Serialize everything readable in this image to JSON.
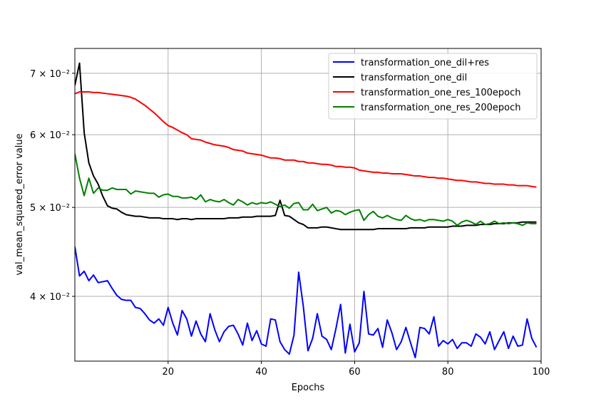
{
  "chart_data": {
    "type": "line",
    "xlabel": "Epochs",
    "ylabel": "val_mean_squared_error value",
    "yscale": "log",
    "xlim": [
      0,
      100
    ],
    "ylim": [
      0.034,
      0.0745
    ],
    "grid": true,
    "legend_position": "top-right",
    "x_ticks": [
      20,
      40,
      60,
      80,
      100
    ],
    "y_ticks": [
      {
        "value": 0.04,
        "label": "4 × 10⁻²"
      },
      {
        "value": 0.05,
        "label": "5 × 10⁻²"
      },
      {
        "value": 0.06,
        "label": "6 × 10⁻²"
      },
      {
        "value": 0.07,
        "label": "7 × 10⁻²"
      }
    ],
    "series": [
      {
        "name": "transformation_one_dil+res",
        "color": "#0000ff",
        "x": [
          0,
          1,
          2,
          3,
          4,
          5,
          6,
          7,
          8,
          9,
          10,
          11,
          12,
          13,
          14,
          15,
          16,
          17,
          18,
          19,
          20,
          21,
          22,
          23,
          24,
          25,
          26,
          27,
          28,
          29,
          30,
          31,
          32,
          33,
          34,
          35,
          36,
          37,
          38,
          39,
          40,
          41,
          42,
          43,
          44,
          45,
          46,
          47,
          48,
          49,
          50,
          51,
          52,
          53,
          54,
          55,
          56,
          57,
          58,
          59,
          60,
          61,
          62,
          63,
          64,
          65,
          66,
          67,
          68,
          69,
          70,
          71,
          72,
          73,
          74,
          75,
          76,
          77,
          78,
          79,
          80,
          81,
          82,
          83,
          84,
          85,
          86,
          87,
          88,
          89,
          90,
          91,
          92,
          93,
          94,
          95,
          96,
          97,
          98,
          99
        ],
        "values": [
          0.0453,
          0.0421,
          0.0426,
          0.0416,
          0.0422,
          0.0414,
          0.0415,
          0.0416,
          0.0408,
          0.0401,
          0.0397,
          0.0396,
          0.0396,
          0.0389,
          0.0388,
          0.0383,
          0.0377,
          0.0374,
          0.0378,
          0.0372,
          0.0389,
          0.0374,
          0.0363,
          0.0386,
          0.0378,
          0.0362,
          0.0376,
          0.0364,
          0.0357,
          0.0383,
          0.0368,
          0.0357,
          0.0366,
          0.0371,
          0.0372,
          0.0364,
          0.0354,
          0.0374,
          0.0358,
          0.0367,
          0.0355,
          0.0353,
          0.0378,
          0.0377,
          0.0357,
          0.035,
          0.0346,
          0.0363,
          0.0425,
          0.039,
          0.0349,
          0.036,
          0.0383,
          0.0362,
          0.0359,
          0.035,
          0.0369,
          0.0392,
          0.0347,
          0.0373,
          0.0348,
          0.0356,
          0.0405,
          0.0364,
          0.0363,
          0.0369,
          0.0352,
          0.0377,
          0.0365,
          0.035,
          0.0357,
          0.037,
          0.0356,
          0.0343,
          0.037,
          0.0369,
          0.0364,
          0.038,
          0.0353,
          0.0358,
          0.0355,
          0.0359,
          0.0351,
          0.0356,
          0.0356,
          0.0353,
          0.0364,
          0.0361,
          0.0355,
          0.0366,
          0.035,
          0.0358,
          0.0366,
          0.0351,
          0.0362,
          0.0353,
          0.0354,
          0.0378,
          0.036,
          0.0352
        ]
      },
      {
        "name": "transformation_one_dil",
        "color": "#000000",
        "x": [
          0,
          1,
          2,
          3,
          4,
          5,
          6,
          7,
          8,
          9,
          10,
          11,
          12,
          13,
          14,
          15,
          16,
          17,
          18,
          19,
          20,
          21,
          22,
          23,
          24,
          25,
          26,
          27,
          28,
          29,
          30,
          31,
          32,
          33,
          34,
          35,
          36,
          37,
          38,
          39,
          40,
          41,
          42,
          43,
          44,
          45,
          46,
          47,
          48,
          49,
          50,
          51,
          52,
          53,
          54,
          55,
          56,
          57,
          58,
          59,
          60,
          61,
          62,
          63,
          64,
          65,
          66,
          67,
          68,
          69,
          70,
          71,
          72,
          73,
          74,
          75,
          76,
          77,
          78,
          79,
          80,
          81,
          82,
          83,
          84,
          85,
          86,
          87,
          88,
          89,
          90,
          91,
          92,
          93,
          94,
          95,
          96,
          97,
          98,
          99
        ],
        "values": [
          0.0679,
          0.0718,
          0.0603,
          0.0559,
          0.0541,
          0.053,
          0.0514,
          0.0502,
          0.0499,
          0.0498,
          0.0494,
          0.0491,
          0.049,
          0.0489,
          0.0489,
          0.0488,
          0.0487,
          0.0487,
          0.0487,
          0.0486,
          0.0486,
          0.0486,
          0.0485,
          0.0486,
          0.0486,
          0.0485,
          0.0486,
          0.0486,
          0.0486,
          0.0486,
          0.0486,
          0.0486,
          0.0486,
          0.0487,
          0.0487,
          0.0487,
          0.0488,
          0.0488,
          0.0488,
          0.0489,
          0.0489,
          0.0489,
          0.0489,
          0.049,
          0.0509,
          0.049,
          0.0489,
          0.0485,
          0.0481,
          0.0479,
          0.0475,
          0.0475,
          0.0475,
          0.0476,
          0.0476,
          0.0475,
          0.0474,
          0.0473,
          0.0473,
          0.0473,
          0.0473,
          0.0473,
          0.0473,
          0.0473,
          0.0473,
          0.0474,
          0.0474,
          0.0474,
          0.0474,
          0.0474,
          0.0474,
          0.0474,
          0.0475,
          0.0475,
          0.0475,
          0.0475,
          0.0476,
          0.0476,
          0.0476,
          0.0476,
          0.0476,
          0.0477,
          0.0477,
          0.0477,
          0.0478,
          0.0478,
          0.0478,
          0.0479,
          0.0479,
          0.0479,
          0.048,
          0.048,
          0.048,
          0.0481,
          0.0481,
          0.0481,
          0.0482,
          0.0482,
          0.0482,
          0.0482
        ]
      },
      {
        "name": "transformation_one_res_100epoch",
        "color": "#ff0000",
        "x": [
          0,
          1,
          2,
          3,
          4,
          5,
          6,
          7,
          8,
          9,
          10,
          11,
          12,
          13,
          14,
          15,
          16,
          17,
          18,
          19,
          20,
          21,
          22,
          23,
          24,
          25,
          26,
          27,
          28,
          29,
          30,
          31,
          32,
          33,
          34,
          35,
          36,
          37,
          38,
          39,
          40,
          41,
          42,
          43,
          44,
          45,
          46,
          47,
          48,
          49,
          50,
          51,
          52,
          53,
          54,
          55,
          56,
          57,
          58,
          59,
          60,
          61,
          62,
          63,
          64,
          65,
          66,
          67,
          68,
          69,
          70,
          71,
          72,
          73,
          74,
          75,
          76,
          77,
          78,
          79,
          80,
          81,
          82,
          83,
          84,
          85,
          86,
          87,
          88,
          89,
          90,
          91,
          92,
          93,
          94,
          95,
          96,
          97,
          98,
          99
        ],
        "values": [
          0.0665,
          0.0668,
          0.0668,
          0.0668,
          0.0667,
          0.0667,
          0.0666,
          0.0665,
          0.0664,
          0.0663,
          0.0662,
          0.0661,
          0.0659,
          0.0656,
          0.0651,
          0.0646,
          0.064,
          0.0634,
          0.0627,
          0.062,
          0.0614,
          0.0611,
          0.0607,
          0.0603,
          0.06,
          0.0594,
          0.0593,
          0.0592,
          0.0589,
          0.0587,
          0.0585,
          0.0584,
          0.0583,
          0.0581,
          0.0578,
          0.0577,
          0.0576,
          0.0573,
          0.0572,
          0.0571,
          0.057,
          0.0568,
          0.0566,
          0.0566,
          0.0565,
          0.0563,
          0.0563,
          0.0563,
          0.0561,
          0.0561,
          0.0559,
          0.0559,
          0.0558,
          0.0557,
          0.0557,
          0.0556,
          0.0554,
          0.0554,
          0.0553,
          0.0553,
          0.0552,
          0.0549,
          0.0548,
          0.0547,
          0.0546,
          0.0546,
          0.0545,
          0.0545,
          0.0544,
          0.0544,
          0.0544,
          0.0543,
          0.0542,
          0.0541,
          0.0541,
          0.054,
          0.0539,
          0.0539,
          0.0538,
          0.0538,
          0.0537,
          0.0536,
          0.0535,
          0.0535,
          0.0534,
          0.0533,
          0.0533,
          0.0532,
          0.0531,
          0.0531,
          0.053,
          0.053,
          0.053,
          0.0529,
          0.0529,
          0.0528,
          0.0528,
          0.0528,
          0.0527,
          0.0526
        ]
      },
      {
        "name": "transformation_one_res_200epoch",
        "color": "#008000",
        "x": [
          0,
          1,
          2,
          3,
          4,
          5,
          6,
          7,
          8,
          9,
          10,
          11,
          12,
          13,
          14,
          15,
          16,
          17,
          18,
          19,
          20,
          21,
          22,
          23,
          24,
          25,
          26,
          27,
          28,
          29,
          30,
          31,
          32,
          33,
          34,
          35,
          36,
          37,
          38,
          39,
          40,
          41,
          42,
          43,
          44,
          45,
          46,
          47,
          48,
          49,
          50,
          51,
          52,
          53,
          54,
          55,
          56,
          57,
          58,
          59,
          60,
          61,
          62,
          63,
          64,
          65,
          66,
          67,
          68,
          69,
          70,
          71,
          72,
          73,
          74,
          75,
          76,
          77,
          78,
          79,
          80,
          81,
          82,
          83,
          84,
          85,
          86,
          87,
          88,
          89,
          90,
          91,
          92,
          93,
          94,
          95,
          96,
          97,
          98,
          99
        ],
        "values": [
          0.0572,
          0.0538,
          0.0515,
          0.0538,
          0.0518,
          0.0525,
          0.0522,
          0.0522,
          0.0525,
          0.0523,
          0.0523,
          0.0523,
          0.0517,
          0.0521,
          0.052,
          0.0519,
          0.0518,
          0.0518,
          0.0513,
          0.0516,
          0.0517,
          0.0514,
          0.0514,
          0.0512,
          0.0512,
          0.0513,
          0.051,
          0.0516,
          0.0507,
          0.051,
          0.0508,
          0.0507,
          0.051,
          0.0506,
          0.0503,
          0.051,
          0.0507,
          0.0503,
          0.0506,
          0.0504,
          0.0506,
          0.0505,
          0.0507,
          0.0504,
          0.0501,
          0.0503,
          0.0499,
          0.0505,
          0.0506,
          0.0497,
          0.0497,
          0.0504,
          0.0496,
          0.0498,
          0.05,
          0.0493,
          0.0496,
          0.0495,
          0.0491,
          0.0494,
          0.0496,
          0.0497,
          0.0484,
          0.0491,
          0.0495,
          0.0489,
          0.0487,
          0.049,
          0.0487,
          0.0485,
          0.0484,
          0.049,
          0.0486,
          0.0484,
          0.0485,
          0.0483,
          0.0485,
          0.0485,
          0.0484,
          0.0483,
          0.0485,
          0.0483,
          0.0478,
          0.0482,
          0.0484,
          0.0482,
          0.0479,
          0.0483,
          0.0479,
          0.048,
          0.0483,
          0.048,
          0.0481,
          0.048,
          0.0481,
          0.048,
          0.0478,
          0.0481,
          0.048,
          0.048
        ]
      }
    ]
  }
}
